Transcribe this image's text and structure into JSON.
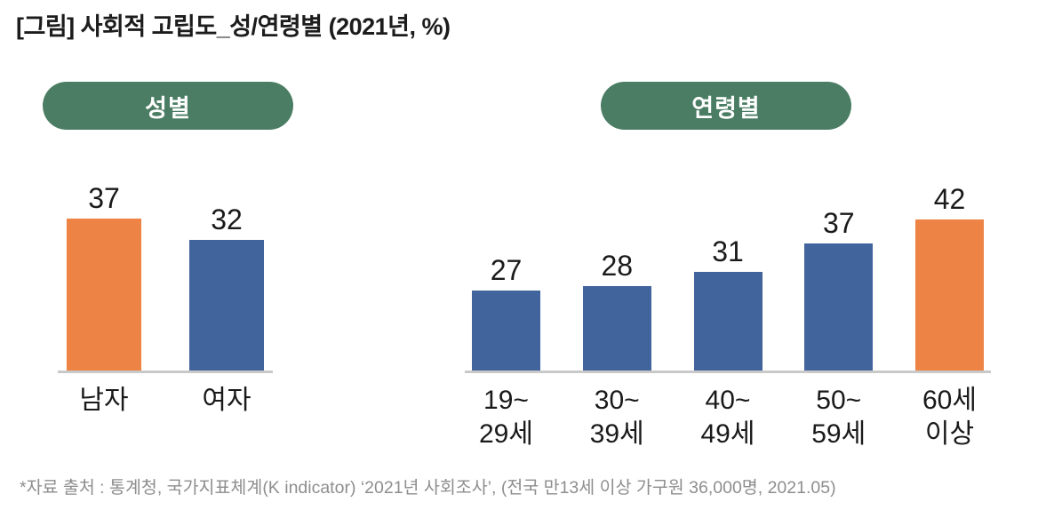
{
  "page": {
    "title": "[그림] 사회적 고립도_성/연령별 (2021년, %)",
    "footnote": "*자료 출처 : 통계청, 국가지표체계(K indicator) ‘2021년 사회조사’, (전국 만13세 이상 가구원 36,000명, 2021.05)"
  },
  "colors": {
    "orange": "#ED8344",
    "blue": "#42649C",
    "pill_green": "#4A7D63",
    "axis_line": "#C9C9C9",
    "text_dark": "#1A1A1A",
    "footnote_gray": "#8E8E8E"
  },
  "chart_data": [
    {
      "type": "bar",
      "title": "성별",
      "categories": [
        "남자",
        "여자"
      ],
      "values": [
        37,
        32
      ],
      "bar_colors": [
        "orange",
        "blue"
      ],
      "ylim": [
        0,
        46
      ],
      "grid": false,
      "legend": "none",
      "value_labels": "above-bars",
      "unit": "%"
    },
    {
      "type": "bar",
      "title": "연령별",
      "categories": [
        "19~\n29세",
        "30~\n39세",
        "40~\n49세",
        "50~\n59세",
        "60세\n이상"
      ],
      "values": [
        27,
        28,
        31,
        37,
        42
      ],
      "bar_colors": [
        "blue",
        "blue",
        "blue",
        "blue",
        "orange"
      ],
      "ylim": [
        10,
        50
      ],
      "grid": false,
      "legend": "none",
      "value_labels": "above-bars",
      "unit": "%"
    }
  ]
}
